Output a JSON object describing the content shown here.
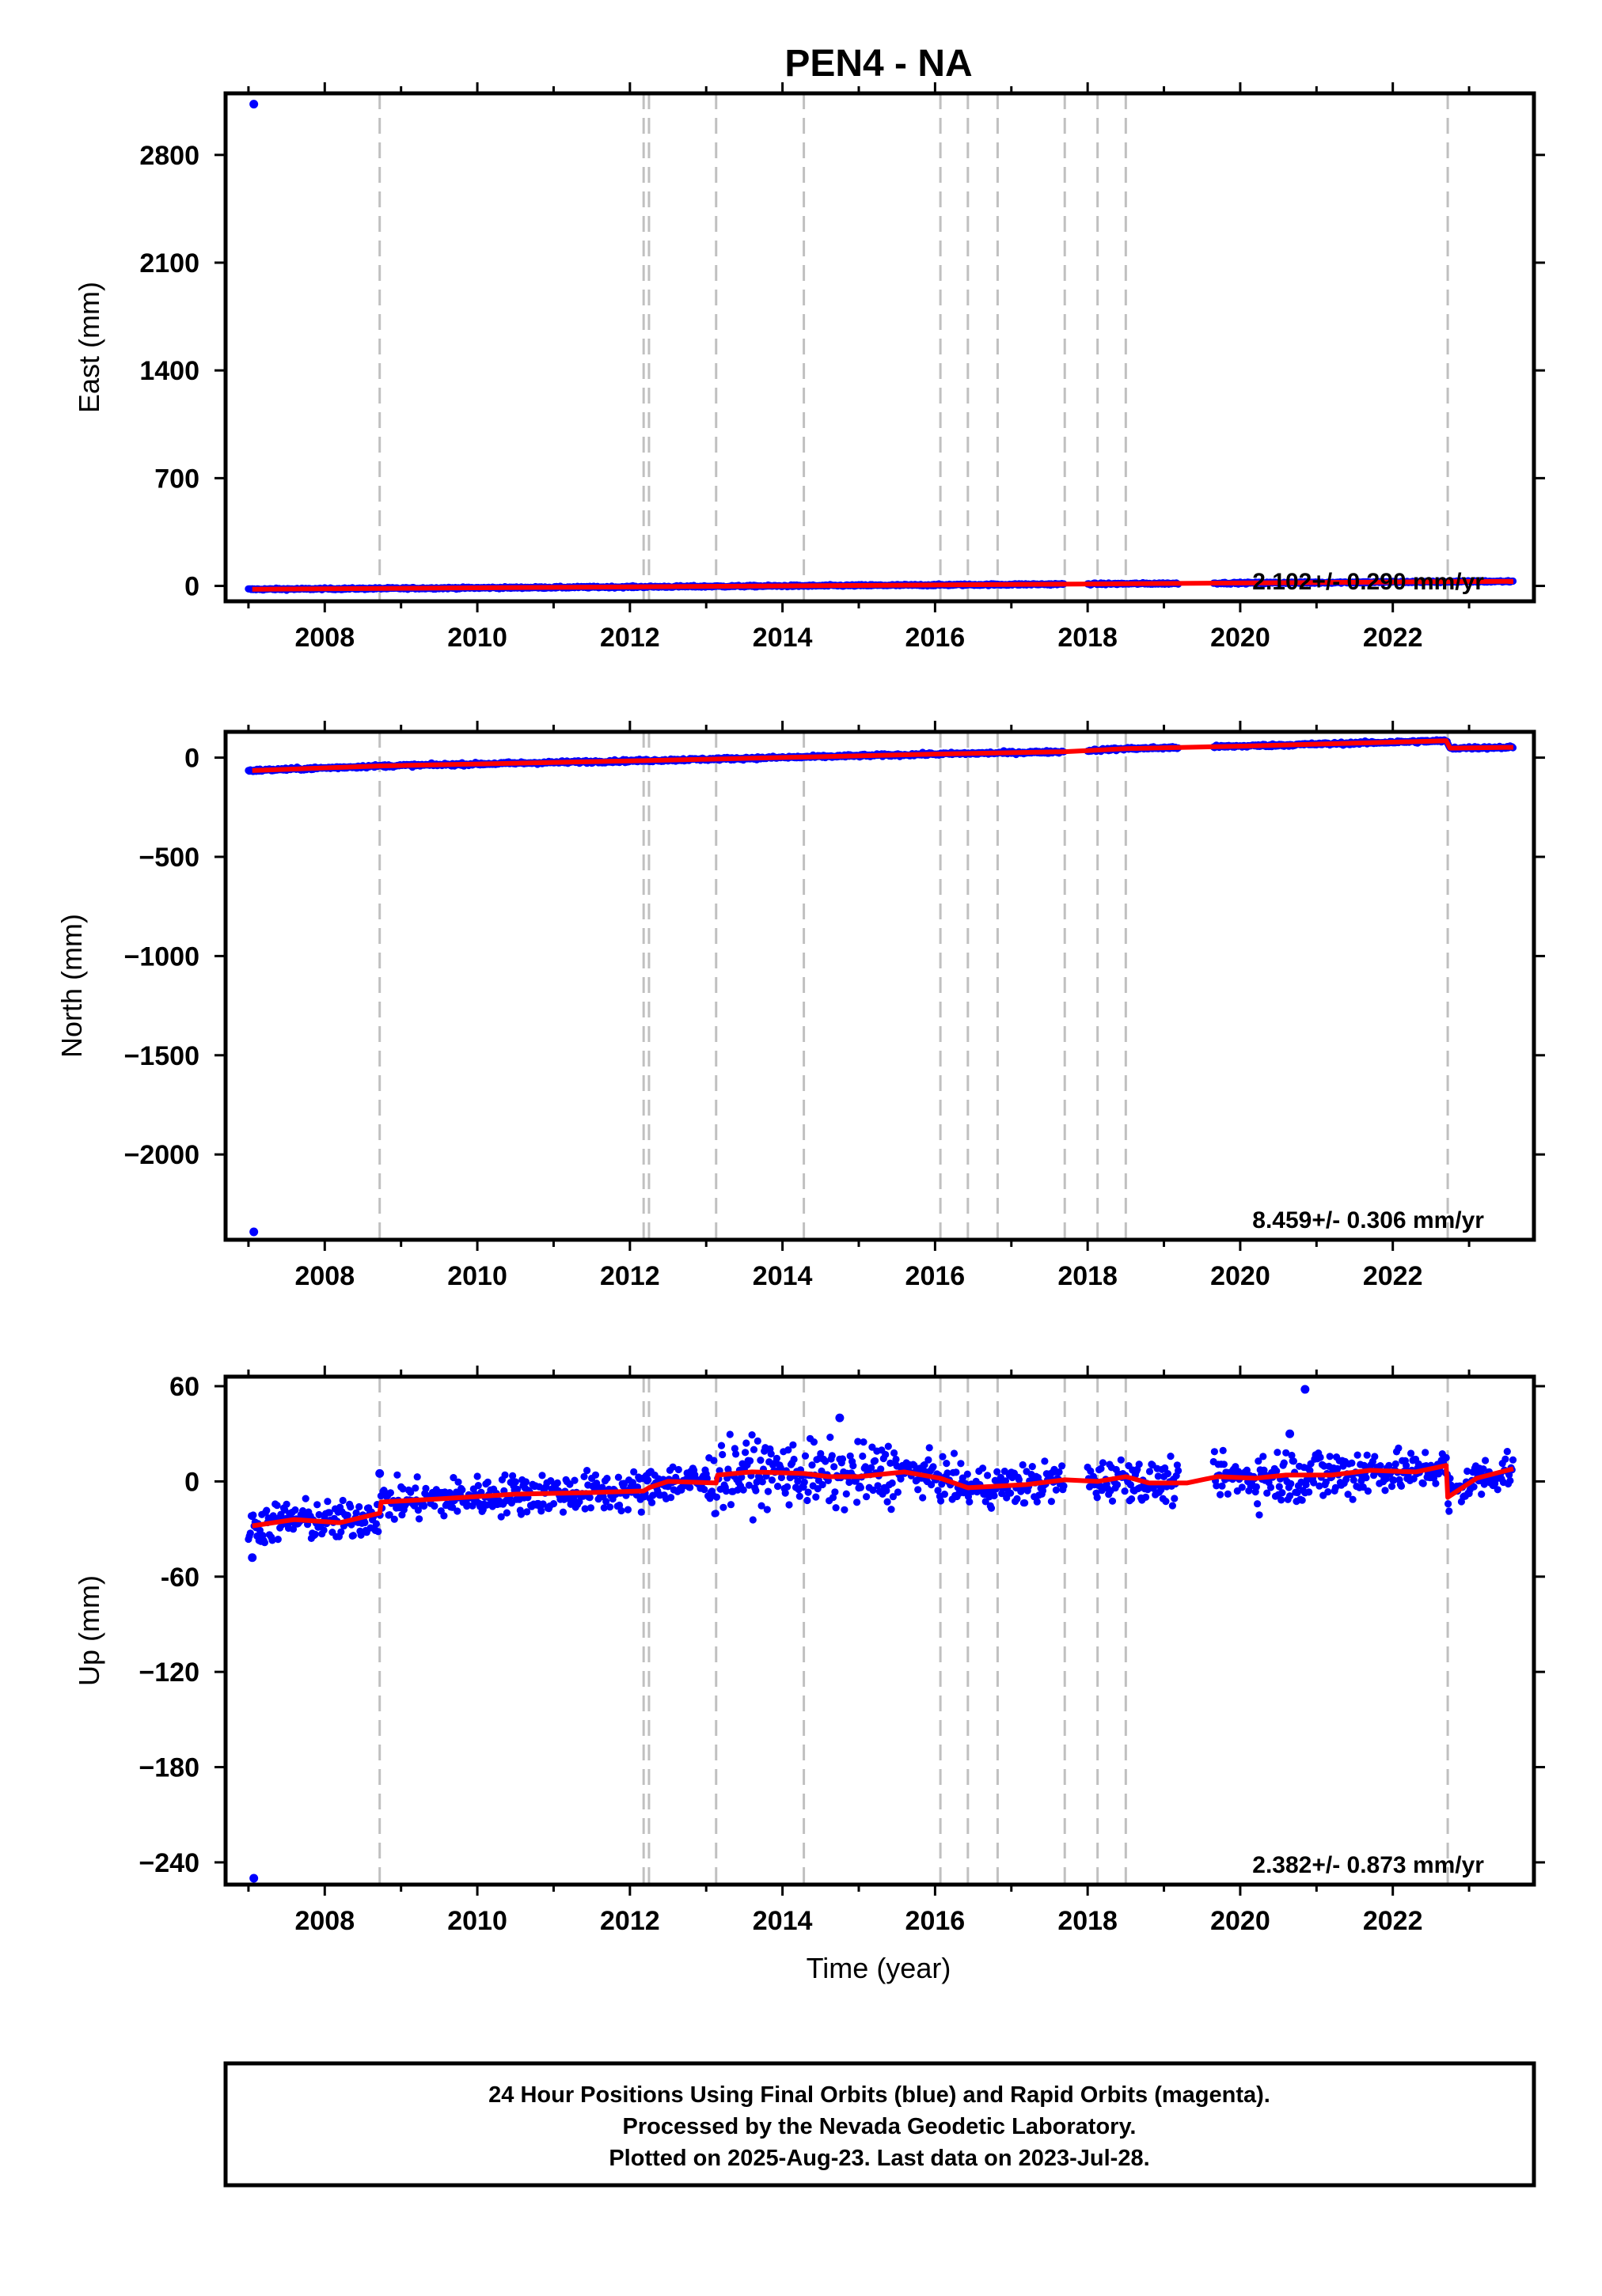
{
  "title": "PEN4 - NA",
  "xlabel": "Time (year)",
  "footer": {
    "line1": "24 Hour Positions Using Final Orbits (blue) and Rapid Orbits (magenta).",
    "line2": "Processed by the Nevada Geodetic Laboratory.",
    "line3": "Plotted on 2025-Aug-23. Last data on 2023-Jul-28."
  },
  "colors": {
    "data": "#0000ff",
    "model": "#ff0000",
    "events": "#c0c0c0",
    "axes": "#000000"
  },
  "chart_data": [
    {
      "type": "scatter",
      "ylabel": "East (mm)",
      "rate_label": "2.102+/- 0.290 mm/yr",
      "xlim": [
        2006.7,
        2023.85
      ],
      "ylim": [
        -100,
        3200
      ],
      "xticks": [
        2008,
        2010,
        2012,
        2014,
        2016,
        2018,
        2020,
        2022
      ],
      "yticks": [
        0,
        700,
        1400,
        2100,
        2800
      ],
      "ytick_labels": [
        "0",
        "700",
        "1400",
        "2100",
        "2800"
      ],
      "events": [
        2008.72,
        2012.18,
        2012.25,
        2013.13,
        2014.28,
        2016.07,
        2016.43,
        2016.82,
        2017.7,
        2018.13,
        2018.5,
        2022.72
      ],
      "outliers": [
        {
          "x": 2007.07,
          "y": 3130
        }
      ],
      "segments": [
        [
          2007.0,
          2017.7
        ],
        [
          2018.0,
          2019.2
        ],
        [
          2019.65,
          2023.58
        ]
      ],
      "model": [
        [
          2007.05,
          -22
        ],
        [
          2023.58,
          30
        ]
      ],
      "noise": 4
    },
    {
      "type": "scatter",
      "ylabel": "North (mm)",
      "rate_label": "8.459+/- 0.306 mm/yr",
      "xlim": [
        2006.7,
        2023.85
      ],
      "ylim": [
        -2430,
        130
      ],
      "xticks": [
        2008,
        2010,
        2012,
        2014,
        2016,
        2018,
        2020,
        2022
      ],
      "yticks": [
        0,
        -500,
        -1000,
        -1500,
        -2000
      ],
      "ytick_labels": [
        "0",
        "−500",
        "−1000",
        "−1500",
        "−2000"
      ],
      "events": [
        2008.72,
        2012.18,
        2012.25,
        2013.13,
        2014.28,
        2016.07,
        2016.43,
        2016.82,
        2017.7,
        2018.13,
        2018.5,
        2022.72
      ],
      "outliers": [
        {
          "x": 2007.07,
          "y": -2390
        }
      ],
      "segments": [
        [
          2007.0,
          2017.7
        ],
        [
          2018.0,
          2019.2
        ],
        [
          2019.65,
          2023.58
        ]
      ],
      "model": [
        [
          2007.05,
          -65
        ],
        [
          2008.72,
          -42
        ],
        [
          2012.18,
          -15
        ],
        [
          2016.0,
          18
        ],
        [
          2017.7,
          30
        ],
        [
          2018.5,
          45
        ],
        [
          2020.0,
          58
        ],
        [
          2022.7,
          85
        ],
        [
          2022.75,
          48
        ],
        [
          2023.58,
          52
        ]
      ],
      "noise": 5
    },
    {
      "type": "scatter",
      "ylabel": "Up (mm)",
      "rate_label": "2.382+/- 0.873 mm/yr",
      "xlim": [
        2006.7,
        2023.85
      ],
      "ylim": [
        -254,
        66
      ],
      "xticks": [
        2008,
        2010,
        2012,
        2014,
        2016,
        2018,
        2020,
        2022
      ],
      "yticks": [
        60,
        0,
        -60,
        -120,
        -180,
        -240
      ],
      "ytick_labels": [
        "60",
        "0",
        "-60",
        "−120",
        "−180",
        "−240"
      ],
      "events": [
        2008.72,
        2012.18,
        2012.25,
        2013.13,
        2014.28,
        2016.07,
        2016.43,
        2016.82,
        2017.7,
        2018.13,
        2018.5,
        2022.72
      ],
      "outliers": [
        {
          "x": 2007.07,
          "y": -250
        },
        {
          "x": 2007.05,
          "y": -48
        },
        {
          "x": 2008.72,
          "y": 5
        },
        {
          "x": 2014.75,
          "y": 40
        },
        {
          "x": 2020.85,
          "y": 58
        },
        {
          "x": 2020.65,
          "y": 30
        }
      ],
      "segments": [
        [
          2007.0,
          2017.7
        ],
        [
          2018.0,
          2019.2
        ],
        [
          2019.65,
          2023.58
        ]
      ],
      "model": [
        [
          2007.05,
          -28
        ],
        [
          2007.6,
          -24
        ],
        [
          2008.2,
          -26
        ],
        [
          2008.72,
          -20
        ],
        [
          2008.74,
          -13
        ],
        [
          2009.5,
          -11
        ],
        [
          2010.5,
          -8
        ],
        [
          2011.5,
          -7
        ],
        [
          2012.18,
          -6
        ],
        [
          2012.25,
          -4
        ],
        [
          2012.5,
          0
        ],
        [
          2013.13,
          -1
        ],
        [
          2013.15,
          4
        ],
        [
          2013.6,
          6
        ],
        [
          2014.28,
          5
        ],
        [
          2014.6,
          3
        ],
        [
          2015.0,
          3
        ],
        [
          2015.6,
          6
        ],
        [
          2016.07,
          2
        ],
        [
          2016.43,
          -4
        ],
        [
          2016.82,
          -3
        ],
        [
          2017.2,
          -2
        ],
        [
          2017.7,
          1
        ],
        [
          2018.13,
          0
        ],
        [
          2018.5,
          3
        ],
        [
          2018.8,
          -1
        ],
        [
          2019.3,
          -1
        ],
        [
          2019.7,
          3
        ],
        [
          2020.2,
          2
        ],
        [
          2020.6,
          4
        ],
        [
          2021.2,
          4
        ],
        [
          2021.7,
          7
        ],
        [
          2022.3,
          6
        ],
        [
          2022.7,
          10
        ],
        [
          2022.72,
          -10
        ],
        [
          2023.1,
          2
        ],
        [
          2023.58,
          8
        ]
      ],
      "noise": 9
    }
  ]
}
